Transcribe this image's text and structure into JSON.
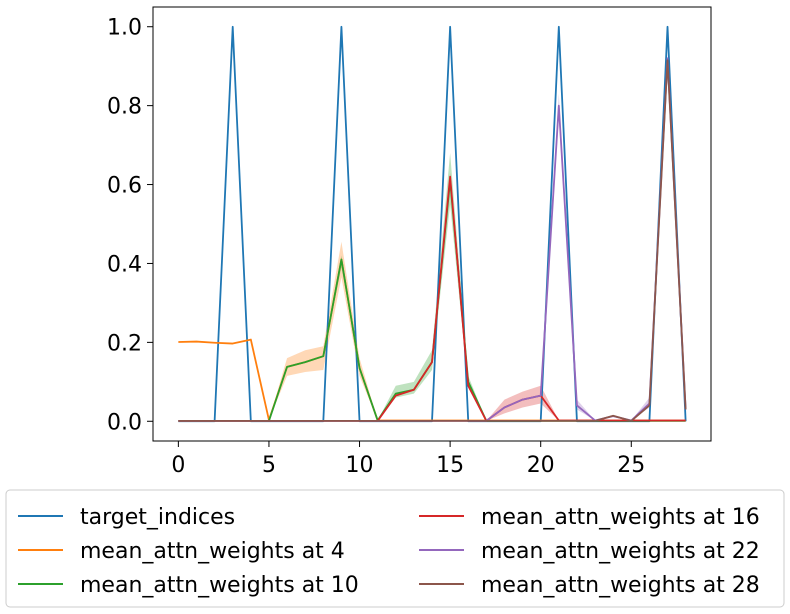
{
  "chart_data": {
    "type": "line",
    "title": "",
    "xlabel": "",
    "ylabel": "",
    "xlim": [
      -1.4,
      29.4
    ],
    "ylim": [
      -0.05,
      1.05
    ],
    "xticks": [
      0,
      5,
      10,
      15,
      20,
      25
    ],
    "yticks": [
      0.0,
      0.2,
      0.4,
      0.6,
      0.8,
      1.0
    ],
    "xtick_labels": [
      "0",
      "5",
      "10",
      "15",
      "20",
      "25"
    ],
    "ytick_labels": [
      "0.0",
      "0.2",
      "0.4",
      "0.6",
      "0.8",
      "1.0"
    ],
    "legend_position": "bottom (below axes), 2 columns",
    "series": [
      {
        "name": "target_indices",
        "color": "#1f77b4",
        "x": [
          0,
          1,
          2,
          3,
          4,
          5,
          6,
          7,
          8,
          9,
          10,
          11,
          12,
          13,
          14,
          15,
          16,
          17,
          18,
          19,
          20,
          21,
          22,
          23,
          24,
          25,
          26,
          27,
          28
        ],
        "values": [
          0,
          0,
          0,
          1,
          0,
          0,
          0,
          0,
          0,
          1,
          0,
          0,
          0,
          0,
          0,
          1,
          0,
          0,
          0,
          0,
          0,
          1,
          0,
          0,
          0,
          0,
          0,
          1,
          0
        ]
      },
      {
        "name": "mean_attn_weights at 4",
        "color": "#ff7f0e",
        "x": [
          0,
          1,
          2,
          3,
          4,
          5,
          6,
          7,
          8,
          9,
          10,
          11,
          12,
          13,
          14,
          15,
          16,
          17,
          18,
          19,
          20,
          21,
          22,
          23,
          24,
          25,
          26,
          27,
          28
        ],
        "values": [
          0.201,
          0.202,
          0.199,
          0.197,
          0.207,
          0.003,
          0.138,
          0.15,
          0.165,
          0.41,
          0.135,
          0.002,
          0.002,
          0.002,
          0.002,
          0.002,
          0.002,
          0.002,
          0.002,
          0.002,
          0.002,
          0.002,
          0.002,
          0.002,
          0.002,
          0.002,
          0.002,
          0.002,
          0.002
        ],
        "lower": [
          0.201,
          0.202,
          0.199,
          0.197,
          0.207,
          0.003,
          0.115,
          0.125,
          0.13,
          0.365,
          0.115,
          0.002,
          0.002,
          0.002,
          0.002,
          0.002,
          0.002,
          0.002,
          0.002,
          0.002,
          0.002,
          0.002,
          0.002,
          0.002,
          0.002,
          0.002,
          0.002,
          0.002,
          0.002
        ],
        "upper": [
          0.201,
          0.202,
          0.199,
          0.197,
          0.207,
          0.003,
          0.16,
          0.18,
          0.19,
          0.455,
          0.16,
          0.002,
          0.002,
          0.002,
          0.002,
          0.002,
          0.002,
          0.002,
          0.002,
          0.002,
          0.002,
          0.002,
          0.002,
          0.002,
          0.002,
          0.002,
          0.002,
          0.002,
          0.002
        ]
      },
      {
        "name": "mean_attn_weights at 10",
        "color": "#2ca02c",
        "x": [
          0,
          1,
          2,
          3,
          4,
          5,
          6,
          7,
          8,
          9,
          10,
          11,
          12,
          13,
          14,
          15,
          16,
          17,
          18,
          19,
          20,
          21,
          22,
          23,
          24,
          25,
          26,
          27,
          28
        ],
        "values": [
          0.001,
          0.001,
          0.001,
          0.001,
          0.001,
          0.001,
          0.138,
          0.15,
          0.165,
          0.41,
          0.135,
          0.002,
          0.07,
          0.08,
          0.15,
          0.61,
          0.1,
          0.001,
          0.001,
          0.001,
          0.001,
          0.001,
          0.001,
          0.001,
          0.001,
          0.001,
          0.001,
          0.001,
          0.001
        ],
        "lower": [
          0.001,
          0.001,
          0.001,
          0.001,
          0.001,
          0.001,
          0.138,
          0.15,
          0.165,
          0.39,
          0.135,
          0.002,
          0.06,
          0.07,
          0.13,
          0.55,
          0.085,
          0.001,
          0.001,
          0.001,
          0.001,
          0.001,
          0.001,
          0.001,
          0.001,
          0.001,
          0.001,
          0.001,
          0.001
        ],
        "upper": [
          0.001,
          0.001,
          0.001,
          0.001,
          0.001,
          0.001,
          0.138,
          0.15,
          0.165,
          0.42,
          0.135,
          0.002,
          0.09,
          0.1,
          0.18,
          0.68,
          0.115,
          0.001,
          0.001,
          0.001,
          0.001,
          0.001,
          0.001,
          0.001,
          0.001,
          0.001,
          0.001,
          0.001,
          0.001
        ]
      },
      {
        "name": "mean_attn_weights at 16",
        "color": "#d62728",
        "x": [
          0,
          1,
          2,
          3,
          4,
          5,
          6,
          7,
          8,
          9,
          10,
          11,
          12,
          13,
          14,
          15,
          16,
          17,
          18,
          19,
          20,
          21,
          22,
          23,
          24,
          25,
          26,
          27,
          28
        ],
        "values": [
          0.001,
          0.001,
          0.001,
          0.001,
          0.001,
          0.001,
          0.001,
          0.001,
          0.001,
          0.001,
          0.001,
          0.001,
          0.065,
          0.08,
          0.15,
          0.62,
          0.09,
          0.001,
          0.035,
          0.055,
          0.065,
          0.002,
          0.002,
          0.002,
          0.002,
          0.002,
          0.002,
          0.002,
          0.002
        ],
        "lower": [
          0.001,
          0.001,
          0.001,
          0.001,
          0.001,
          0.001,
          0.001,
          0.001,
          0.001,
          0.001,
          0.001,
          0.001,
          0.065,
          0.08,
          0.15,
          0.6,
          0.085,
          0.001,
          0.02,
          0.035,
          0.045,
          0.002,
          0.002,
          0.002,
          0.002,
          0.002,
          0.002,
          0.002,
          0.002
        ],
        "upper": [
          0.001,
          0.001,
          0.001,
          0.001,
          0.001,
          0.001,
          0.001,
          0.001,
          0.001,
          0.001,
          0.001,
          0.001,
          0.065,
          0.08,
          0.15,
          0.63,
          0.095,
          0.001,
          0.055,
          0.075,
          0.09,
          0.002,
          0.002,
          0.002,
          0.002,
          0.002,
          0.002,
          0.002,
          0.002
        ]
      },
      {
        "name": "mean_attn_weights at 22",
        "color": "#9467bd",
        "x": [
          0,
          1,
          2,
          3,
          4,
          5,
          6,
          7,
          8,
          9,
          10,
          11,
          12,
          13,
          14,
          15,
          16,
          17,
          18,
          19,
          20,
          21,
          22,
          23,
          24,
          25,
          26,
          27,
          28
        ],
        "values": [
          0.001,
          0.001,
          0.001,
          0.001,
          0.001,
          0.001,
          0.001,
          0.001,
          0.001,
          0.001,
          0.001,
          0.001,
          0.001,
          0.001,
          0.001,
          0.001,
          0.001,
          0.001,
          0.035,
          0.055,
          0.065,
          0.8,
          0.04,
          0.002,
          0.013,
          0.002,
          0.045,
          0.92,
          0.03
        ],
        "lower": [
          0.001,
          0.001,
          0.001,
          0.001,
          0.001,
          0.001,
          0.001,
          0.001,
          0.001,
          0.001,
          0.001,
          0.001,
          0.001,
          0.001,
          0.001,
          0.001,
          0.001,
          0.001,
          0.035,
          0.055,
          0.065,
          0.77,
          0.03,
          0.002,
          0.013,
          0.002,
          0.035,
          0.91,
          0.03
        ],
        "upper": [
          0.001,
          0.001,
          0.001,
          0.001,
          0.001,
          0.001,
          0.001,
          0.001,
          0.001,
          0.001,
          0.001,
          0.001,
          0.001,
          0.001,
          0.001,
          0.001,
          0.001,
          0.001,
          0.035,
          0.055,
          0.065,
          0.83,
          0.055,
          0.002,
          0.013,
          0.002,
          0.06,
          0.93,
          0.03
        ]
      },
      {
        "name": "mean_attn_weights at 28",
        "color": "#8c564b",
        "x": [
          0,
          1,
          2,
          3,
          4,
          5,
          6,
          7,
          8,
          9,
          10,
          11,
          12,
          13,
          14,
          15,
          16,
          17,
          18,
          19,
          20,
          21,
          22,
          23,
          24,
          25,
          26,
          27,
          28
        ],
        "values": [
          0.001,
          0.001,
          0.001,
          0.001,
          0.001,
          0.001,
          0.001,
          0.001,
          0.001,
          0.001,
          0.001,
          0.001,
          0.001,
          0.001,
          0.001,
          0.001,
          0.001,
          0.001,
          0.001,
          0.001,
          0.001,
          0.001,
          0.001,
          0.001,
          0.014,
          0.001,
          0.04,
          0.915,
          0.03
        ]
      }
    ]
  }
}
